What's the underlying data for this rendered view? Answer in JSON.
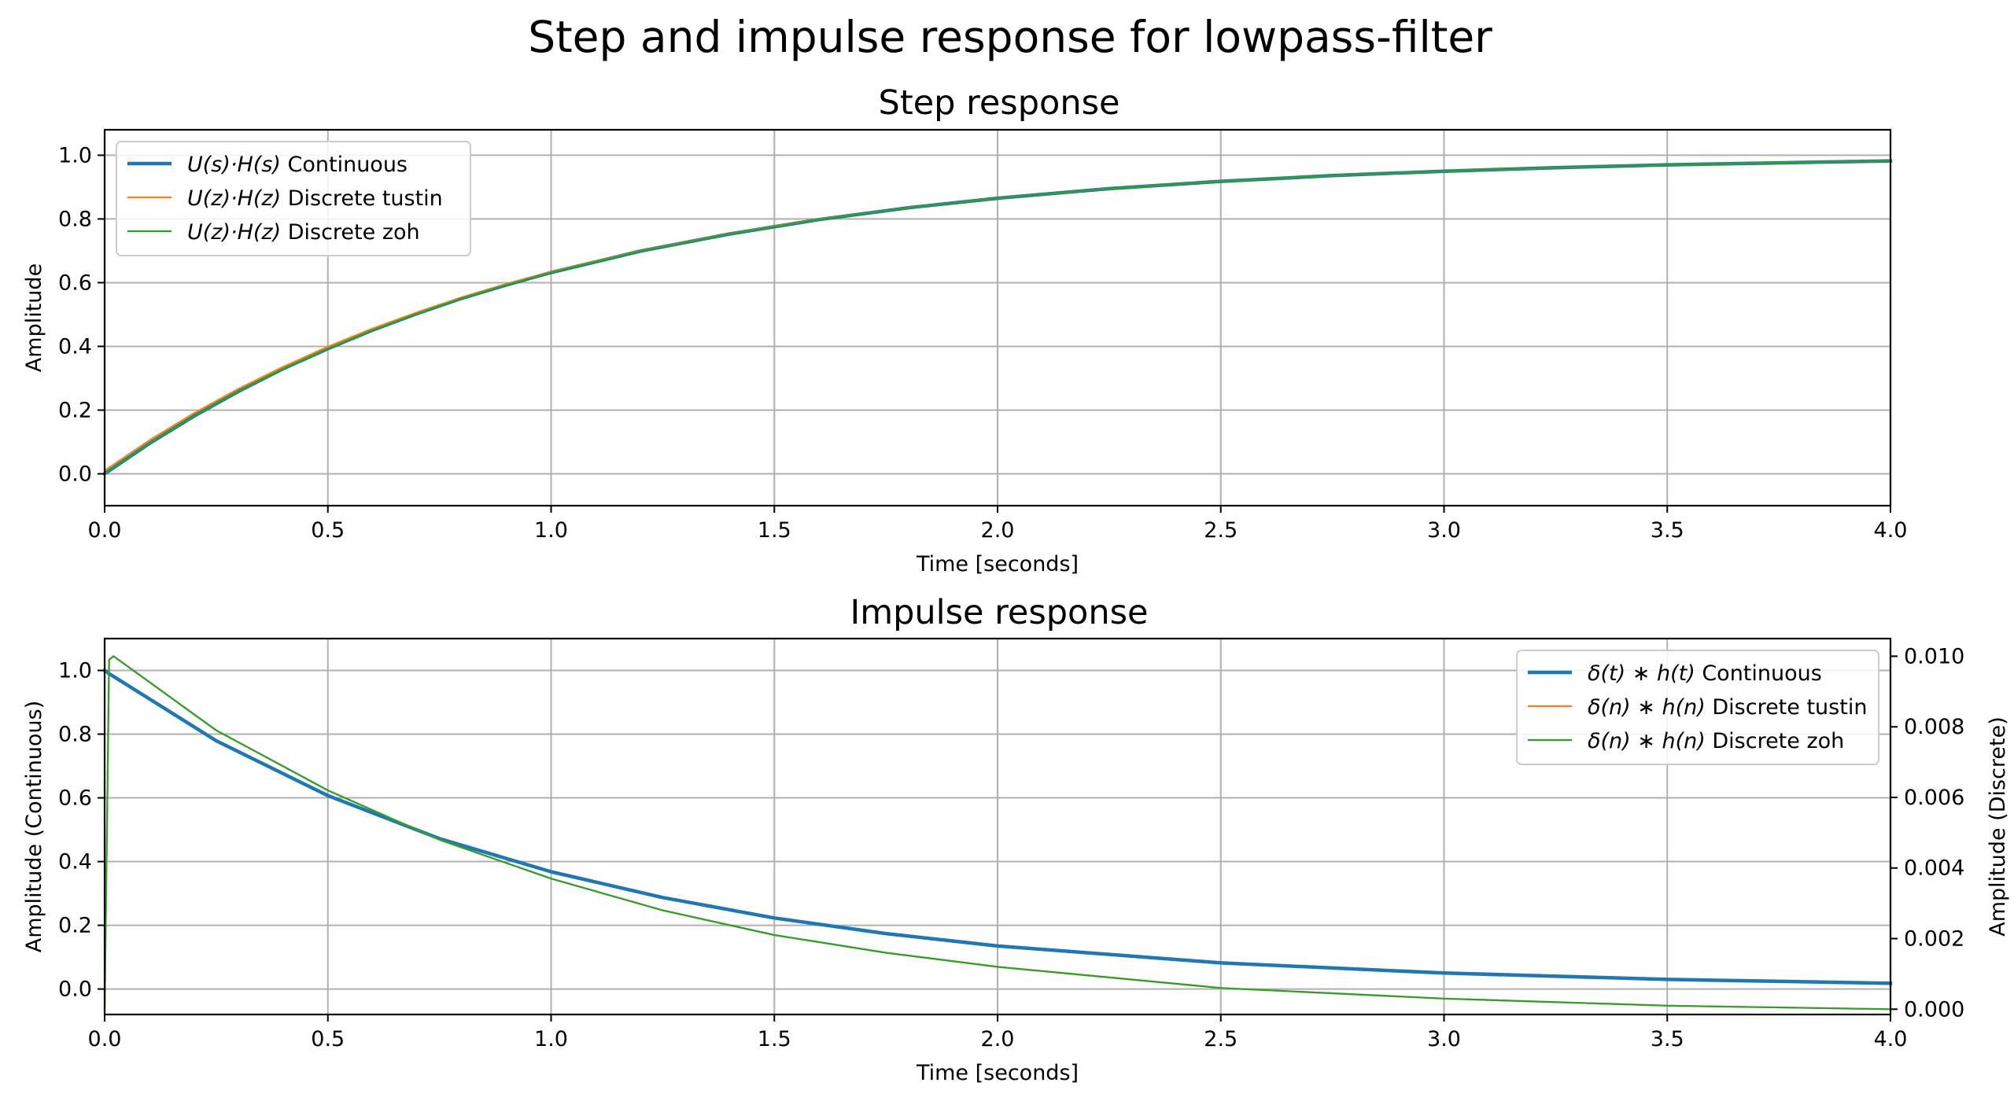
{
  "suptitle": "Step and impulse response for lowpass-filter",
  "colors": {
    "continuous": "#1f77b4",
    "tustin": "#ff7f0e",
    "zoh": "#2ca02c",
    "grid": "#b0b0b0"
  },
  "chart_data": [
    {
      "type": "line",
      "title": "Step response",
      "xlabel": "Time [seconds]",
      "ylabel": "Amplitude",
      "xlim": [
        0,
        4
      ],
      "ylim": [
        -0.1,
        1.08
      ],
      "xticks": [
        "0.0",
        "0.5",
        "1.0",
        "1.5",
        "2.0",
        "2.5",
        "3.0",
        "3.5",
        "4.0"
      ],
      "yticks": [
        "0.0",
        "0.2",
        "0.4",
        "0.6",
        "0.8",
        "1.0"
      ],
      "grid": true,
      "legend_position": "upper-left",
      "x": [
        0,
        0.1,
        0.2,
        0.3,
        0.4,
        0.5,
        0.6,
        0.7,
        0.8,
        0.9,
        1.0,
        1.2,
        1.4,
        1.6,
        1.8,
        2.0,
        2.25,
        2.5,
        2.75,
        3.0,
        3.25,
        3.5,
        3.75,
        4.0
      ],
      "series": [
        {
          "name": "U(s)·H(s) Continuous",
          "name_parts": {
            "math": "U(s)·H(s)",
            "text": " Continuous"
          },
          "values": [
            0.0,
            0.095,
            0.181,
            0.259,
            0.33,
            0.393,
            0.451,
            0.503,
            0.551,
            0.593,
            0.632,
            0.699,
            0.753,
            0.798,
            0.835,
            0.865,
            0.895,
            0.918,
            0.936,
            0.95,
            0.961,
            0.97,
            0.976,
            0.982
          ]
        },
        {
          "name": "U(z)·H(z) Discrete tustin",
          "name_parts": {
            "math": "U(z)·H(z)",
            "text": " Discrete tustin"
          },
          "values": [
            0.01,
            0.105,
            0.19,
            0.267,
            0.336,
            0.399,
            0.456,
            0.507,
            0.554,
            0.596,
            0.634,
            0.7,
            0.754,
            0.799,
            0.835,
            0.865,
            0.895,
            0.918,
            0.936,
            0.95,
            0.961,
            0.97,
            0.976,
            0.982
          ]
        },
        {
          "name": "U(z)·H(z) Discrete zoh",
          "name_parts": {
            "math": "U(z)·H(z)",
            "text": " Discrete zoh"
          },
          "values": [
            0.0,
            0.095,
            0.181,
            0.259,
            0.33,
            0.393,
            0.451,
            0.503,
            0.551,
            0.593,
            0.632,
            0.699,
            0.753,
            0.798,
            0.835,
            0.865,
            0.895,
            0.918,
            0.936,
            0.95,
            0.961,
            0.97,
            0.976,
            0.982
          ]
        }
      ]
    },
    {
      "type": "line",
      "title": "Impulse response",
      "xlabel": "Time [seconds]",
      "ylabel": "Amplitude (Continuous)",
      "ylabel_right": "Amplitude (Discrete)",
      "xlim": [
        0,
        4
      ],
      "ylim": [
        -0.08,
        1.1
      ],
      "ylim_right": [
        -0.00015,
        0.0105
      ],
      "xticks": [
        "0.0",
        "0.5",
        "1.0",
        "1.5",
        "2.0",
        "2.5",
        "3.0",
        "3.5",
        "4.0"
      ],
      "yticks": [
        "0.0",
        "0.2",
        "0.4",
        "0.6",
        "0.8",
        "1.0"
      ],
      "yticks_right": [
        "0.000",
        "0.002",
        "0.004",
        "0.006",
        "0.008",
        "0.010"
      ],
      "grid": true,
      "legend_position": "upper-right",
      "series": [
        {
          "name": "δ(t) ∗ h(t) Continuous",
          "name_parts": {
            "math": "δ(t) ∗ h(t)",
            "text": " Continuous"
          },
          "axis": "left",
          "x": [
            0,
            0.01,
            0.25,
            0.5,
            0.75,
            1.0,
            1.25,
            1.5,
            1.75,
            2.0,
            2.5,
            3.0,
            3.5,
            4.0
          ],
          "values": [
            1.0,
            0.99,
            0.779,
            0.607,
            0.472,
            0.368,
            0.287,
            0.223,
            0.174,
            0.135,
            0.082,
            0.05,
            0.03,
            0.018
          ]
        },
        {
          "name": "δ(n) ∗ h(n) Discrete tustin",
          "name_parts": {
            "math": "δ(n) ∗ h(n)",
            "text": " Discrete tustin"
          },
          "axis": "right",
          "x": [
            0,
            0.01,
            0.02,
            0.25,
            0.5,
            0.75,
            1.0,
            1.25,
            1.5,
            1.75,
            2.0,
            2.5,
            3.0,
            3.5,
            4.0
          ],
          "values": [
            0.0,
            0.0099,
            0.01,
            0.0079,
            0.0062,
            0.0048,
            0.0037,
            0.0028,
            0.0021,
            0.0016,
            0.0012,
            0.0006,
            0.0003,
            0.0001,
            0.0
          ]
        },
        {
          "name": "δ(n) ∗ h(n) Discrete zoh",
          "name_parts": {
            "math": "δ(n) ∗ h(n)",
            "text": " Discrete zoh"
          },
          "axis": "right",
          "x": [
            0,
            0.01,
            0.02,
            0.25,
            0.5,
            0.75,
            1.0,
            1.25,
            1.5,
            1.75,
            2.0,
            2.5,
            3.0,
            3.5,
            4.0
          ],
          "values": [
            0.0,
            0.0099,
            0.01,
            0.0079,
            0.0062,
            0.0048,
            0.0037,
            0.0028,
            0.0021,
            0.0016,
            0.0012,
            0.0006,
            0.0003,
            0.0001,
            0.0
          ]
        }
      ]
    }
  ]
}
